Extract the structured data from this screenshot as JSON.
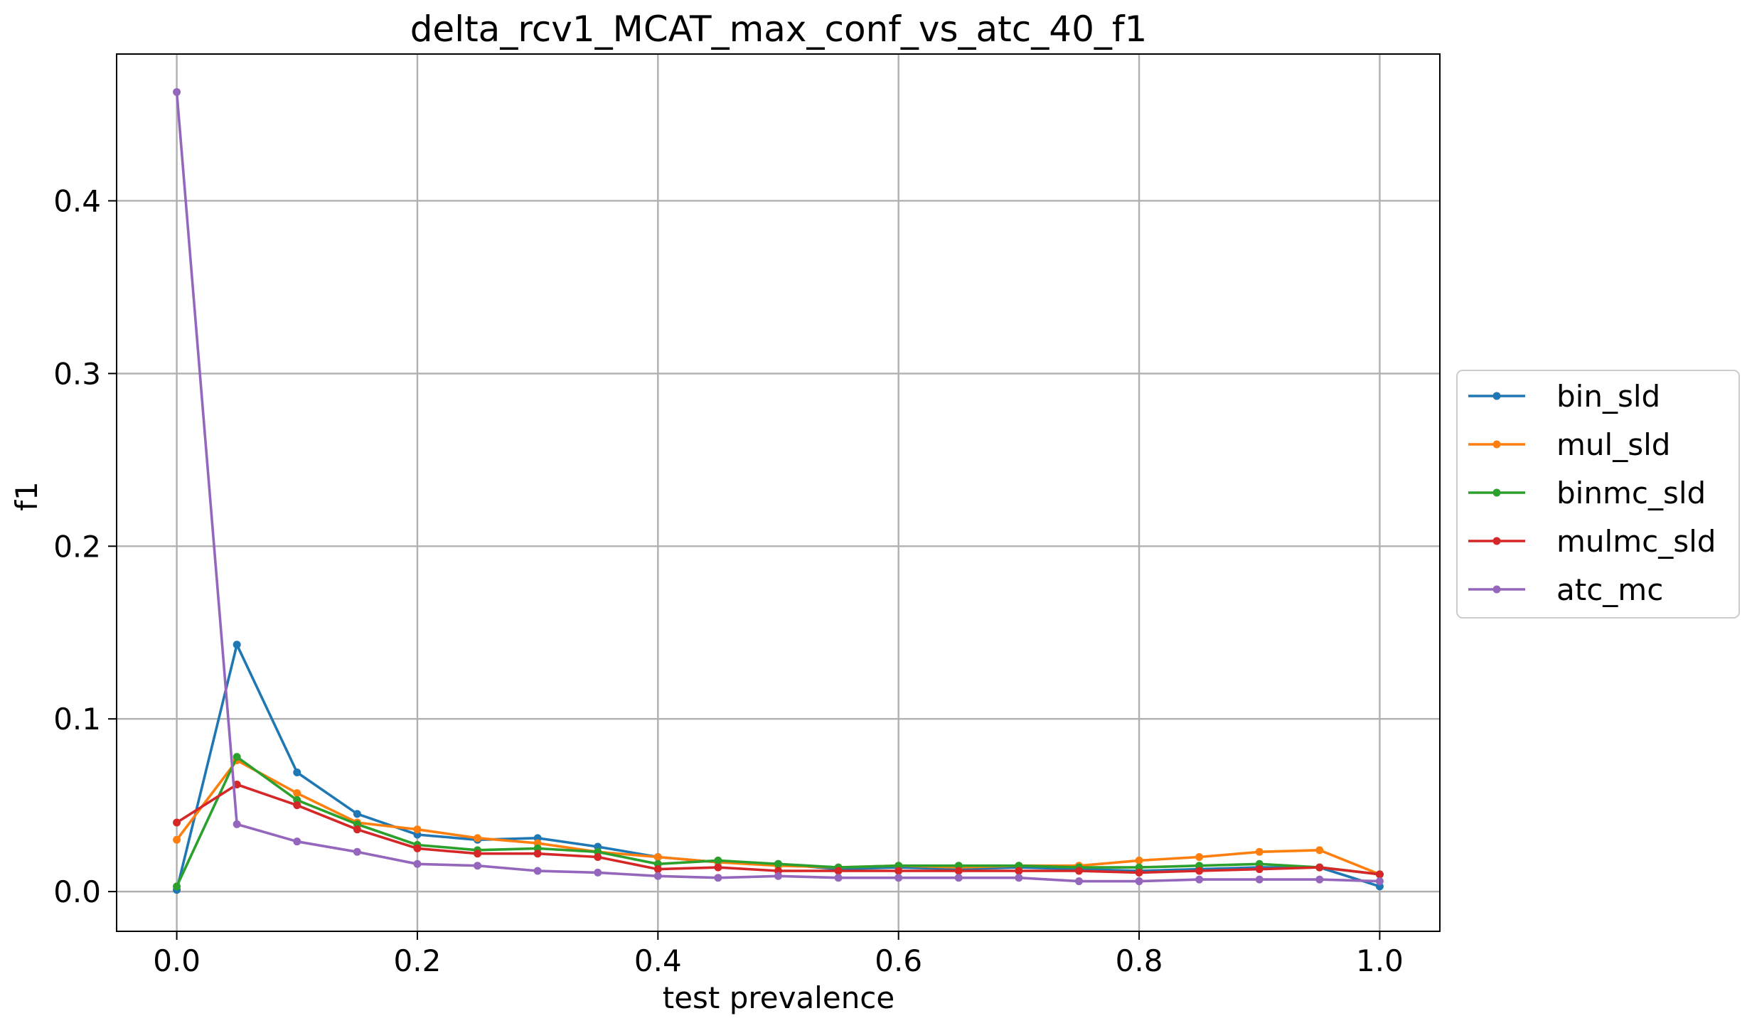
{
  "chart_data": {
    "type": "line",
    "title": "delta_rcv1_MCAT_max_conf_vs_atc_40_f1",
    "xlabel": "test prevalence",
    "ylabel": "f1",
    "xlim": [
      -0.05,
      1.05
    ],
    "ylim": [
      -0.023,
      0.485
    ],
    "xticks": [
      0.0,
      0.2,
      0.4,
      0.6,
      0.8,
      1.0
    ],
    "xtick_labels": [
      "0.0",
      "0.2",
      "0.4",
      "0.6",
      "0.8",
      "1.0"
    ],
    "yticks": [
      0.0,
      0.1,
      0.2,
      0.3,
      0.4
    ],
    "ytick_labels": [
      "0.0",
      "0.1",
      "0.2",
      "0.3",
      "0.4"
    ],
    "grid": true,
    "legend_position": "center-right-outside",
    "x": [
      0.0,
      0.05,
      0.1,
      0.15,
      0.2,
      0.25,
      0.3,
      0.35,
      0.4,
      0.45,
      0.5,
      0.55,
      0.6,
      0.65,
      0.7,
      0.75,
      0.8,
      0.85,
      0.9,
      0.95,
      1.0
    ],
    "series": [
      {
        "name": "bin_sld",
        "color": "#1f77b4",
        "values": [
          0.001,
          0.143,
          0.069,
          0.045,
          0.033,
          0.03,
          0.031,
          0.026,
          0.02,
          0.017,
          0.016,
          0.013,
          0.014,
          0.013,
          0.014,
          0.013,
          0.012,
          0.013,
          0.014,
          0.014,
          0.003
        ]
      },
      {
        "name": "mul_sld",
        "color": "#ff7f0e",
        "values": [
          0.03,
          0.076,
          0.057,
          0.04,
          0.036,
          0.031,
          0.028,
          0.023,
          0.02,
          0.017,
          0.015,
          0.014,
          0.015,
          0.014,
          0.015,
          0.015,
          0.018,
          0.02,
          0.023,
          0.024,
          0.01
        ]
      },
      {
        "name": "binmc_sld",
        "color": "#2ca02c",
        "values": [
          0.003,
          0.078,
          0.053,
          0.039,
          0.027,
          0.024,
          0.025,
          0.023,
          0.016,
          0.018,
          0.016,
          0.014,
          0.015,
          0.015,
          0.015,
          0.014,
          0.014,
          0.015,
          0.016,
          0.014,
          0.01
        ]
      },
      {
        "name": "mulmc_sld",
        "color": "#d62728",
        "values": [
          0.04,
          0.062,
          0.05,
          0.036,
          0.025,
          0.022,
          0.022,
          0.02,
          0.013,
          0.014,
          0.012,
          0.012,
          0.012,
          0.012,
          0.012,
          0.012,
          0.011,
          0.012,
          0.013,
          0.014,
          0.01
        ]
      },
      {
        "name": "atc_mc",
        "color": "#9467bd",
        "values": [
          0.463,
          0.039,
          0.029,
          0.023,
          0.016,
          0.015,
          0.012,
          0.011,
          0.009,
          0.008,
          0.009,
          0.008,
          0.008,
          0.008,
          0.008,
          0.006,
          0.006,
          0.007,
          0.007,
          0.007,
          0.006
        ]
      }
    ]
  }
}
